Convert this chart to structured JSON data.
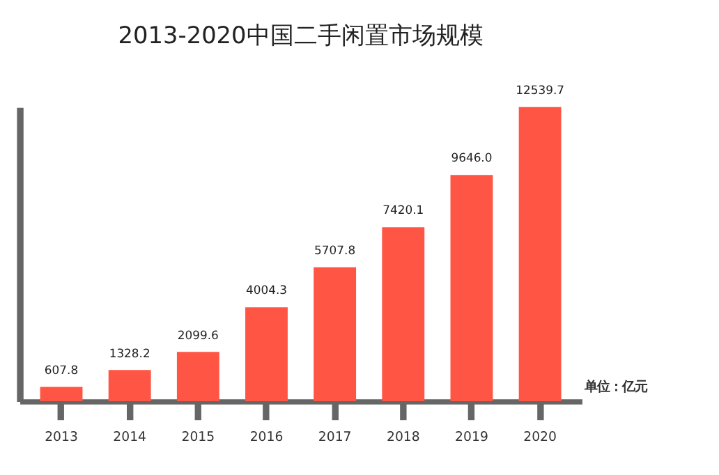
{
  "chart_data": {
    "type": "bar",
    "title": "2013-2020中国二手闲置市场规模",
    "categories": [
      "2013",
      "2014",
      "2015",
      "2016",
      "2017",
      "2018",
      "2019",
      "2020"
    ],
    "values": [
      607.8,
      1328.2,
      2099.6,
      4004.3,
      5707.8,
      7420.1,
      9646.0,
      12539.7
    ],
    "color": "#ff5545",
    "value_labels": [
      "607.8",
      "1328.2",
      "2099.6",
      "4004.3",
      "5707.8",
      "7420.1",
      "9646.0",
      "12539.7"
    ],
    "tick_labels": "x",
    "grid": false,
    "annotations": [
      "单位：亿元"
    ]
  }
}
